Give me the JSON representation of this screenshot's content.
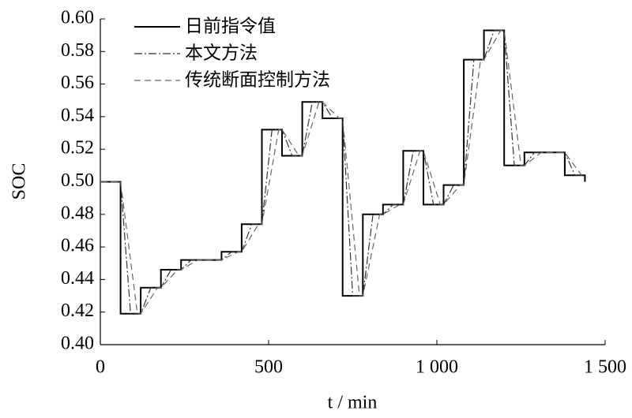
{
  "chart_data": {
    "type": "line",
    "ylabel": "SOC",
    "xlabel": "t / min",
    "xlim": [
      0,
      1500
    ],
    "xticks": [
      0,
      500,
      {
        "value": 1000,
        "label": "1 000"
      },
      {
        "value": 1500,
        "label": "1 500"
      }
    ],
    "ylim": [
      0.4,
      0.6
    ],
    "yticks": [
      {
        "value": 0.4,
        "label": "0.40"
      },
      {
        "value": 0.42,
        "label": "0.42"
      },
      {
        "value": 0.44,
        "label": "0.44"
      },
      {
        "value": 0.46,
        "label": "0.46"
      },
      {
        "value": 0.48,
        "label": "0.48"
      },
      {
        "value": 0.5,
        "label": "0.50"
      },
      {
        "value": 0.52,
        "label": "0.52"
      },
      {
        "value": 0.54,
        "label": "0.54"
      },
      {
        "value": 0.56,
        "label": "0.56"
      },
      {
        "value": 0.58,
        "label": "0.58"
      },
      {
        "value": 0.6,
        "label": "0.60"
      }
    ],
    "legend": "upper left",
    "series": [
      {
        "name": "日前指令值",
        "color": "#000000",
        "dash": "solid",
        "x": [
          0,
          60,
          60,
          120,
          120,
          180,
          180,
          240,
          240,
          360,
          360,
          420,
          420,
          480,
          480,
          540,
          540,
          600,
          600,
          660,
          660,
          720,
          720,
          780,
          780,
          840,
          840,
          900,
          900,
          960,
          960,
          1020,
          1020,
          1080,
          1080,
          1140,
          1140,
          1200,
          1200,
          1260,
          1260,
          1380,
          1380,
          1440,
          1440
        ],
        "values": [
          0.5,
          0.5,
          0.419,
          0.419,
          0.435,
          0.435,
          0.446,
          0.446,
          0.452,
          0.452,
          0.457,
          0.457,
          0.474,
          0.474,
          0.532,
          0.532,
          0.516,
          0.516,
          0.549,
          0.549,
          0.539,
          0.539,
          0.43,
          0.43,
          0.48,
          0.48,
          0.486,
          0.486,
          0.519,
          0.519,
          0.486,
          0.486,
          0.498,
          0.498,
          0.575,
          0.575,
          0.593,
          0.593,
          0.51,
          0.51,
          0.518,
          0.518,
          0.504,
          0.504,
          0.5
        ]
      },
      {
        "name": "本文方法",
        "color": "#333333",
        "dash": "dashdot",
        "x": [
          0,
          60,
          90,
          120,
          150,
          180,
          210,
          240,
          270,
          360,
          390,
          420,
          450,
          480,
          510,
          540,
          570,
          600,
          630,
          660,
          690,
          720,
          750,
          780,
          810,
          840,
          870,
          900,
          930,
          960,
          990,
          1020,
          1050,
          1080,
          1110,
          1140,
          1170,
          1200,
          1230,
          1260,
          1290,
          1380,
          1410,
          1440
        ],
        "values": [
          0.5,
          0.5,
          0.419,
          0.419,
          0.435,
          0.435,
          0.446,
          0.446,
          0.452,
          0.452,
          0.457,
          0.457,
          0.474,
          0.474,
          0.532,
          0.532,
          0.516,
          0.516,
          0.549,
          0.549,
          0.539,
          0.539,
          0.43,
          0.43,
          0.48,
          0.48,
          0.486,
          0.486,
          0.519,
          0.519,
          0.486,
          0.486,
          0.498,
          0.498,
          0.575,
          0.575,
          0.593,
          0.593,
          0.51,
          0.51,
          0.518,
          0.518,
          0.504,
          0.504
        ]
      },
      {
        "name": "传统断面控制方法",
        "color": "#666666",
        "dash": "dashed",
        "x": [
          0,
          60,
          110,
          120,
          170,
          180,
          230,
          240,
          290,
          360,
          410,
          420,
          470,
          480,
          530,
          540,
          590,
          600,
          650,
          660,
          710,
          720,
          770,
          780,
          830,
          840,
          890,
          900,
          950,
          960,
          1010,
          1020,
          1070,
          1080,
          1130,
          1140,
          1190,
          1200,
          1250,
          1260,
          1310,
          1380,
          1430,
          1440
        ],
        "values": [
          0.5,
          0.5,
          0.419,
          0.419,
          0.435,
          0.435,
          0.446,
          0.446,
          0.452,
          0.452,
          0.457,
          0.457,
          0.474,
          0.474,
          0.532,
          0.532,
          0.516,
          0.516,
          0.549,
          0.549,
          0.539,
          0.539,
          0.43,
          0.43,
          0.48,
          0.48,
          0.486,
          0.486,
          0.519,
          0.519,
          0.486,
          0.486,
          0.498,
          0.498,
          0.575,
          0.575,
          0.593,
          0.593,
          0.51,
          0.51,
          0.518,
          0.518,
          0.504,
          0.504
        ]
      }
    ]
  }
}
